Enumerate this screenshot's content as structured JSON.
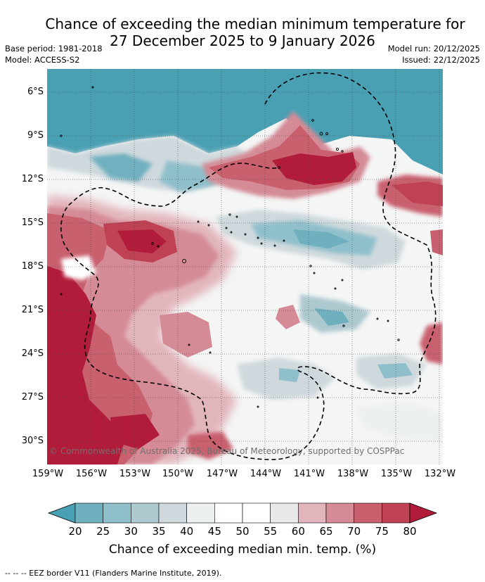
{
  "title": {
    "line1": "Chance of exceeding the median minimum temperature for",
    "line2": "27 December 2025 to 9 January 2026"
  },
  "meta": {
    "base_period": "Base period: 1981-2018",
    "model": "Model: ACCESS-S2",
    "model_run": "Model run: 20/12/2025",
    "issued": "Issued: 22/12/2025"
  },
  "map": {
    "lat_labels": [
      "6°S",
      "9°S",
      "12°S",
      "15°S",
      "18°S",
      "21°S",
      "24°S",
      "27°S",
      "30°S"
    ],
    "lon_labels": [
      "159°W",
      "156°W",
      "153°W",
      "150°W",
      "147°W",
      "144°W",
      "141°W",
      "138°W",
      "135°W",
      "132°W"
    ],
    "copyright": "© Commonwealth of Australia 2025, Bureau of Meteorology, supported by COSPPac"
  },
  "colorbar": {
    "ticks": [
      "20",
      "25",
      "30",
      "35",
      "40",
      "45",
      "50",
      "55",
      "60",
      "65",
      "70",
      "75",
      "80"
    ],
    "colors": [
      "#4aa0b3",
      "#6fb0bf",
      "#8fbfcb",
      "#adc9d0",
      "#cfd9dd",
      "#edf0f1",
      "#ffffff",
      "#ffffff",
      "#e8e8e8",
      "#e2b5bc",
      "#d48b96",
      "#c9606e",
      "#bf4254",
      "#b01c3a"
    ],
    "label": "Chance of exceeding median min. temp. (%)"
  },
  "footnote": "-- -- -- EEZ border V11 (Flanders Marine Institute, 2019)."
}
